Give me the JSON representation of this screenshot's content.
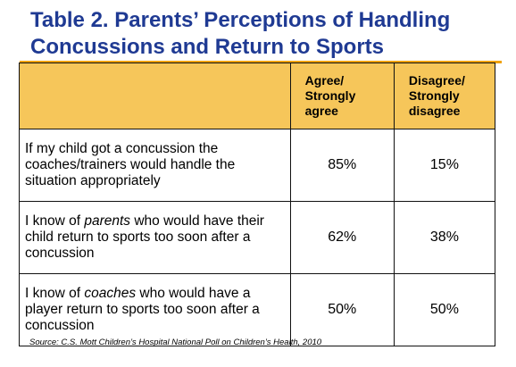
{
  "title_line1": "Table 2. Parents’ Perceptions of Handling",
  "title_line2": "Concussions and Return to Sports",
  "chart_data": {
    "type": "table",
    "title": "Table 2. Parents’ Perceptions of Handling Concussions and Return to Sports",
    "columns": [
      {
        "id": "agree",
        "lines": [
          "Agree/",
          "Strongly",
          "agree"
        ]
      },
      {
        "id": "disagree",
        "lines": [
          "Disagree/",
          "Strongly",
          "disagree"
        ]
      }
    ],
    "rows": [
      {
        "statement_parts": [
          "If my child got a concussion the coaches/trainers would handle the situation appropriately"
        ],
        "agree": "85%",
        "disagree": "15%"
      },
      {
        "statement_parts": [
          "I know of ",
          "parents",
          " who would have their child return to sports too soon after a concussion"
        ],
        "agree": "62%",
        "disagree": "38%"
      },
      {
        "statement_parts": [
          "I know of ",
          "coaches",
          " who would have a player return to sports too soon after a concussion"
        ],
        "agree": "50%",
        "disagree": "50%"
      }
    ],
    "source": "Source: C.S. Mott Children’s Hospital National Poll on Children’s Health, 2010"
  },
  "colors": {
    "title": "#1f3a93",
    "header_fill": "#f6c65a",
    "accent_rule": "#f0a20a"
  }
}
